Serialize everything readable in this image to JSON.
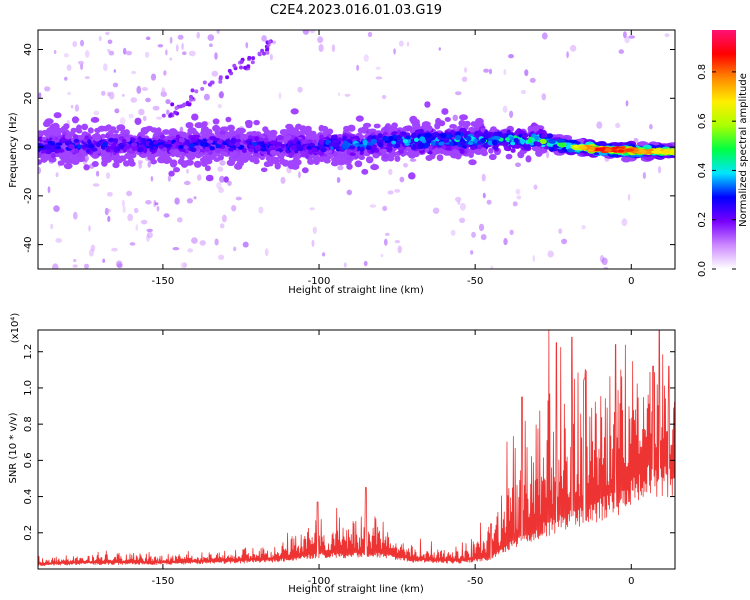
{
  "figure": {
    "title": "C2E4.2023.016.01.03.G19"
  },
  "chart_data": [
    {
      "type": "heatmap",
      "title": "C2E4.2023.016.01.03.G19",
      "xlabel": "Height of straight line (km)",
      "ylabel": "Frequency (Hz)",
      "xlim": [
        -190,
        14
      ],
      "ylim": [
        -50,
        48
      ],
      "xticks": [
        -150,
        -100,
        -50,
        0
      ],
      "xtick_labels": [
        "-150",
        "-100",
        "-50",
        "0"
      ],
      "yticks": [
        -40,
        -20,
        0,
        20,
        40
      ],
      "ytick_labels": [
        "-40",
        "-20",
        "0",
        "20",
        "40"
      ],
      "colorbar": {
        "label": "Normalized spectral amplitude",
        "range": [
          0,
          0.97
        ],
        "ticks": [
          0.0,
          0.2,
          0.4,
          0.6,
          0.8
        ],
        "tick_labels": [
          "0.0",
          "0.2",
          "0.4",
          "0.6",
          "0.8"
        ],
        "colors": [
          "#ffffff",
          "#cc88ff",
          "#7700ff",
          "#0000ff",
          "#00e5ff",
          "#00ff44",
          "#aaff00",
          "#ffee00",
          "#ff8800",
          "#ff0000",
          "#ff1177"
        ]
      },
      "ridge": {
        "description_points": [
          {
            "x": -190,
            "y": 0.5
          },
          {
            "x": -150,
            "y": 1
          },
          {
            "x": -100,
            "y": 0.5
          },
          {
            "x": -60,
            "y": 3
          },
          {
            "x": -45,
            "y": 3
          },
          {
            "x": -30,
            "y": 3
          },
          {
            "x": -20,
            "y": 0
          },
          {
            "x": 0,
            "y": -1.5
          },
          {
            "x": 14,
            "y": -2
          }
        ],
        "spread_hz": [
          {
            "x": -190,
            "spread": 6
          },
          {
            "x": -120,
            "spread": 6
          },
          {
            "x": -60,
            "spread": 6
          },
          {
            "x": -30,
            "spread": 4
          },
          {
            "x": -20,
            "spread": 2
          },
          {
            "x": 14,
            "spread": 1.5
          }
        ],
        "peak_amplitude": [
          {
            "x": -190,
            "amp": 0.3
          },
          {
            "x": -120,
            "amp": 0.3
          },
          {
            "x": -60,
            "amp": 0.4
          },
          {
            "x": -40,
            "amp": 0.45
          },
          {
            "x": -20,
            "amp": 0.6
          },
          {
            "x": -10,
            "amp": 0.95
          },
          {
            "x": 0,
            "amp": 0.9
          },
          {
            "x": 14,
            "amp": 0.7
          }
        ]
      }
    },
    {
      "type": "line",
      "xlabel": "Height of straight line (km)",
      "ylabel": "SNR (10 * v/v)",
      "y_multiplier": "(x10⁴)",
      "xlim": [
        -190,
        14
      ],
      "ylim": [
        0,
        1.32
      ],
      "xticks": [
        -150,
        -100,
        -50,
        0
      ],
      "xtick_labels": [
        "-150",
        "-100",
        "-50",
        "0"
      ],
      "yticks": [
        0.2,
        0.4,
        0.6,
        0.8,
        1.0,
        1.2
      ],
      "ytick_labels": [
        "0.2",
        "0.4",
        "0.6",
        "0.8",
        "1.0",
        "1.2"
      ],
      "series": [
        {
          "color": "#ee3333",
          "envelope": [
            {
              "x": -190,
              "base": 0.03,
              "amp": 0.03
            },
            {
              "x": -175,
              "base": 0.04,
              "amp": 0.04
            },
            {
              "x": -150,
              "base": 0.04,
              "amp": 0.04
            },
            {
              "x": -130,
              "base": 0.05,
              "amp": 0.05
            },
            {
              "x": -115,
              "base": 0.06,
              "amp": 0.07
            },
            {
              "x": -100,
              "base": 0.1,
              "amp": 0.15
            },
            {
              "x": -90,
              "base": 0.1,
              "amp": 0.14
            },
            {
              "x": -82,
              "base": 0.11,
              "amp": 0.18
            },
            {
              "x": -70,
              "base": 0.06,
              "amp": 0.07
            },
            {
              "x": -55,
              "base": 0.05,
              "amp": 0.06
            },
            {
              "x": -45,
              "base": 0.08,
              "amp": 0.18
            },
            {
              "x": -38,
              "base": 0.18,
              "amp": 0.45
            },
            {
              "x": -25,
              "base": 0.32,
              "amp": 0.65
            },
            {
              "x": -15,
              "base": 0.4,
              "amp": 0.75
            },
            {
              "x": -5,
              "base": 0.48,
              "amp": 0.5
            },
            {
              "x": 5,
              "base": 0.68,
              "amp": 0.45
            },
            {
              "x": 14,
              "base": 0.62,
              "amp": 0.4
            }
          ],
          "peaks": [
            {
              "x": -100.5,
              "y": 0.37
            },
            {
              "x": -85,
              "y": 0.45
            },
            {
              "x": -45,
              "y": 0.25
            },
            {
              "x": -35,
              "y": 0.95
            },
            {
              "x": -24,
              "y": 1.25
            },
            {
              "x": -19,
              "y": 1.28
            },
            {
              "x": -15,
              "y": 1.05
            },
            {
              "x": -5,
              "y": 1.24
            },
            {
              "x": 7,
              "y": 1.12
            },
            {
              "x": 9,
              "y": 1.32
            },
            {
              "x": 12,
              "y": 1.12
            }
          ]
        }
      ]
    }
  ]
}
